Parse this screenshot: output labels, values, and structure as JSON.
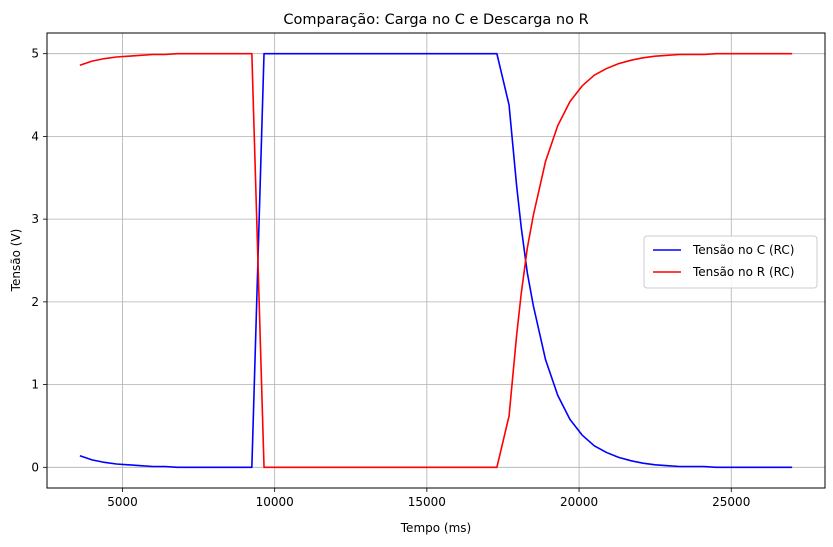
{
  "chart_data": {
    "type": "line",
    "title": "Comparação: Carga no C e Descarga no R",
    "xlabel": "Tempo (ms)",
    "ylabel": "Tensão (V)",
    "xlim": [
      2520,
      28080
    ],
    "ylim": [
      -0.25,
      5.25
    ],
    "xticks": [
      5000,
      10000,
      15000,
      20000,
      25000
    ],
    "yticks": [
      0,
      1,
      2,
      3,
      4,
      5
    ],
    "grid": true,
    "legend_position": "center-right",
    "series": [
      {
        "name": "Tensão no C (RC)",
        "color": "#0000ff",
        "points": [
          [
            3600,
            0.14
          ],
          [
            4000,
            0.09
          ],
          [
            4400,
            0.06
          ],
          [
            4800,
            0.04
          ],
          [
            5200,
            0.03
          ],
          [
            5600,
            0.02
          ],
          [
            6000,
            0.01
          ],
          [
            6400,
            0.01
          ],
          [
            6800,
            0.0
          ],
          [
            7200,
            0.0
          ],
          [
            8000,
            0.0
          ],
          [
            8800,
            0.0
          ],
          [
            9250,
            0.0
          ],
          [
            9650,
            5.0
          ],
          [
            10000,
            5.0
          ],
          [
            12000,
            5.0
          ],
          [
            14000,
            5.0
          ],
          [
            16000,
            5.0
          ],
          [
            17300,
            5.0
          ],
          [
            17700,
            4.38
          ],
          [
            17950,
            3.4
          ],
          [
            18100,
            2.9
          ],
          [
            18300,
            2.35
          ],
          [
            18500,
            1.95
          ],
          [
            18900,
            1.3
          ],
          [
            19300,
            0.87
          ],
          [
            19700,
            0.58
          ],
          [
            20100,
            0.39
          ],
          [
            20500,
            0.26
          ],
          [
            20900,
            0.18
          ],
          [
            21300,
            0.12
          ],
          [
            21700,
            0.08
          ],
          [
            22100,
            0.05
          ],
          [
            22500,
            0.03
          ],
          [
            22900,
            0.02
          ],
          [
            23300,
            0.01
          ],
          [
            23700,
            0.01
          ],
          [
            24100,
            0.01
          ],
          [
            24500,
            0.0
          ],
          [
            25000,
            0.0
          ],
          [
            26000,
            0.0
          ],
          [
            27000,
            0.0
          ]
        ]
      },
      {
        "name": "Tensão no R (RC)",
        "color": "#ff0000",
        "points": [
          [
            3600,
            4.86
          ],
          [
            4000,
            4.91
          ],
          [
            4400,
            4.94
          ],
          [
            4800,
            4.96
          ],
          [
            5200,
            4.97
          ],
          [
            5600,
            4.98
          ],
          [
            6000,
            4.99
          ],
          [
            6400,
            4.99
          ],
          [
            6800,
            5.0
          ],
          [
            7200,
            5.0
          ],
          [
            8000,
            5.0
          ],
          [
            8800,
            5.0
          ],
          [
            9250,
            5.0
          ],
          [
            9650,
            0.0
          ],
          [
            10000,
            0.0
          ],
          [
            12000,
            0.0
          ],
          [
            14000,
            0.0
          ],
          [
            16000,
            0.0
          ],
          [
            17300,
            0.0
          ],
          [
            17700,
            0.62
          ],
          [
            17950,
            1.6
          ],
          [
            18100,
            2.1
          ],
          [
            18300,
            2.65
          ],
          [
            18500,
            3.05
          ],
          [
            18900,
            3.7
          ],
          [
            19300,
            4.13
          ],
          [
            19700,
            4.42
          ],
          [
            20100,
            4.61
          ],
          [
            20500,
            4.74
          ],
          [
            20900,
            4.82
          ],
          [
            21300,
            4.88
          ],
          [
            21700,
            4.92
          ],
          [
            22100,
            4.95
          ],
          [
            22500,
            4.97
          ],
          [
            22900,
            4.98
          ],
          [
            23300,
            4.99
          ],
          [
            23700,
            4.99
          ],
          [
            24100,
            4.99
          ],
          [
            24500,
            5.0
          ],
          [
            25000,
            5.0
          ],
          [
            26000,
            5.0
          ],
          [
            27000,
            5.0
          ]
        ]
      }
    ]
  }
}
